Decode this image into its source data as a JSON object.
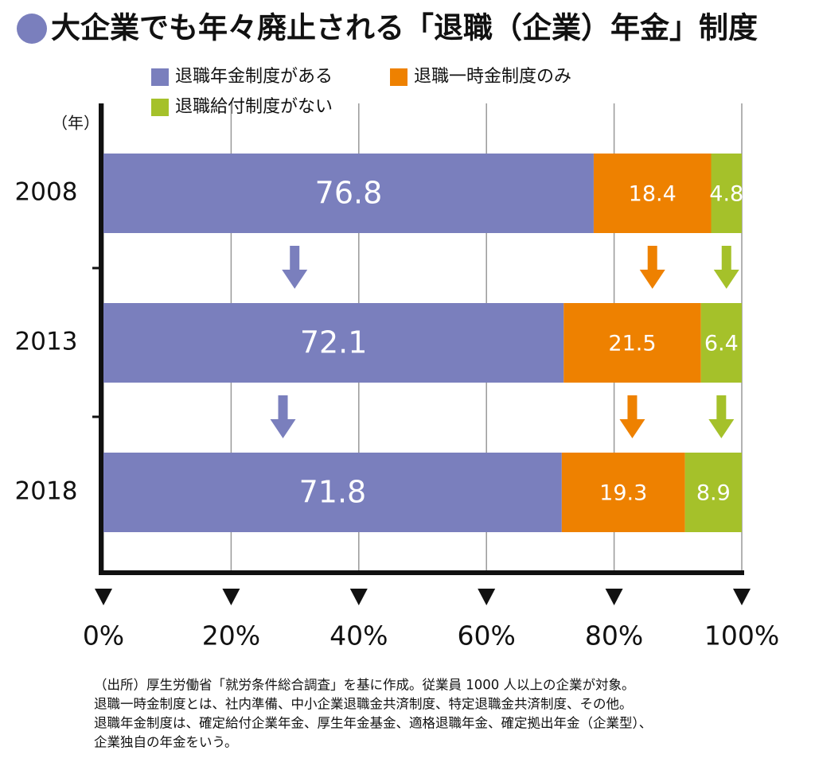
{
  "chart_data": {
    "type": "stacked-barh",
    "title": "大企業でも年々廃止される「退職（企業）年金」制度",
    "y_label": "（年）",
    "categories": [
      "2008",
      "2013",
      "2018"
    ],
    "series": [
      {
        "name": "退職年金制度がある",
        "color": "#7a7fbd",
        "values": [
          76.8,
          72.1,
          71.8
        ]
      },
      {
        "name": "退職一時金制度のみ",
        "color": "#ee8100",
        "values": [
          18.4,
          21.5,
          19.3
        ]
      },
      {
        "name": "退職給付制度がない",
        "color": "#a5c12a",
        "values": [
          4.8,
          6.4,
          8.9
        ]
      }
    ],
    "xlim": [
      0,
      100
    ],
    "xticks": [
      {
        "value": 0,
        "label": "0%"
      },
      {
        "value": 20,
        "label": "20%"
      },
      {
        "value": 40,
        "label": "40%"
      },
      {
        "value": 60,
        "label": "60%"
      },
      {
        "value": 80,
        "label": "80%"
      },
      {
        "value": 100,
        "label": "100%"
      }
    ],
    "grid": true,
    "notes": [
      "（出所）厚生労働省「就労条件総合調査」を基に作成。従業員 1000 人以上の企業が対象。",
      "退職一時金制度とは、社内準備、中小企業退職金共済制度、特定退職金共済制度、その他。",
      "退職年金制度は、確定給付企業年金、厚生年金基金、適格退職年金、確定拠出年金（企業型）、",
      "企業独自の年金をいう。"
    ]
  }
}
